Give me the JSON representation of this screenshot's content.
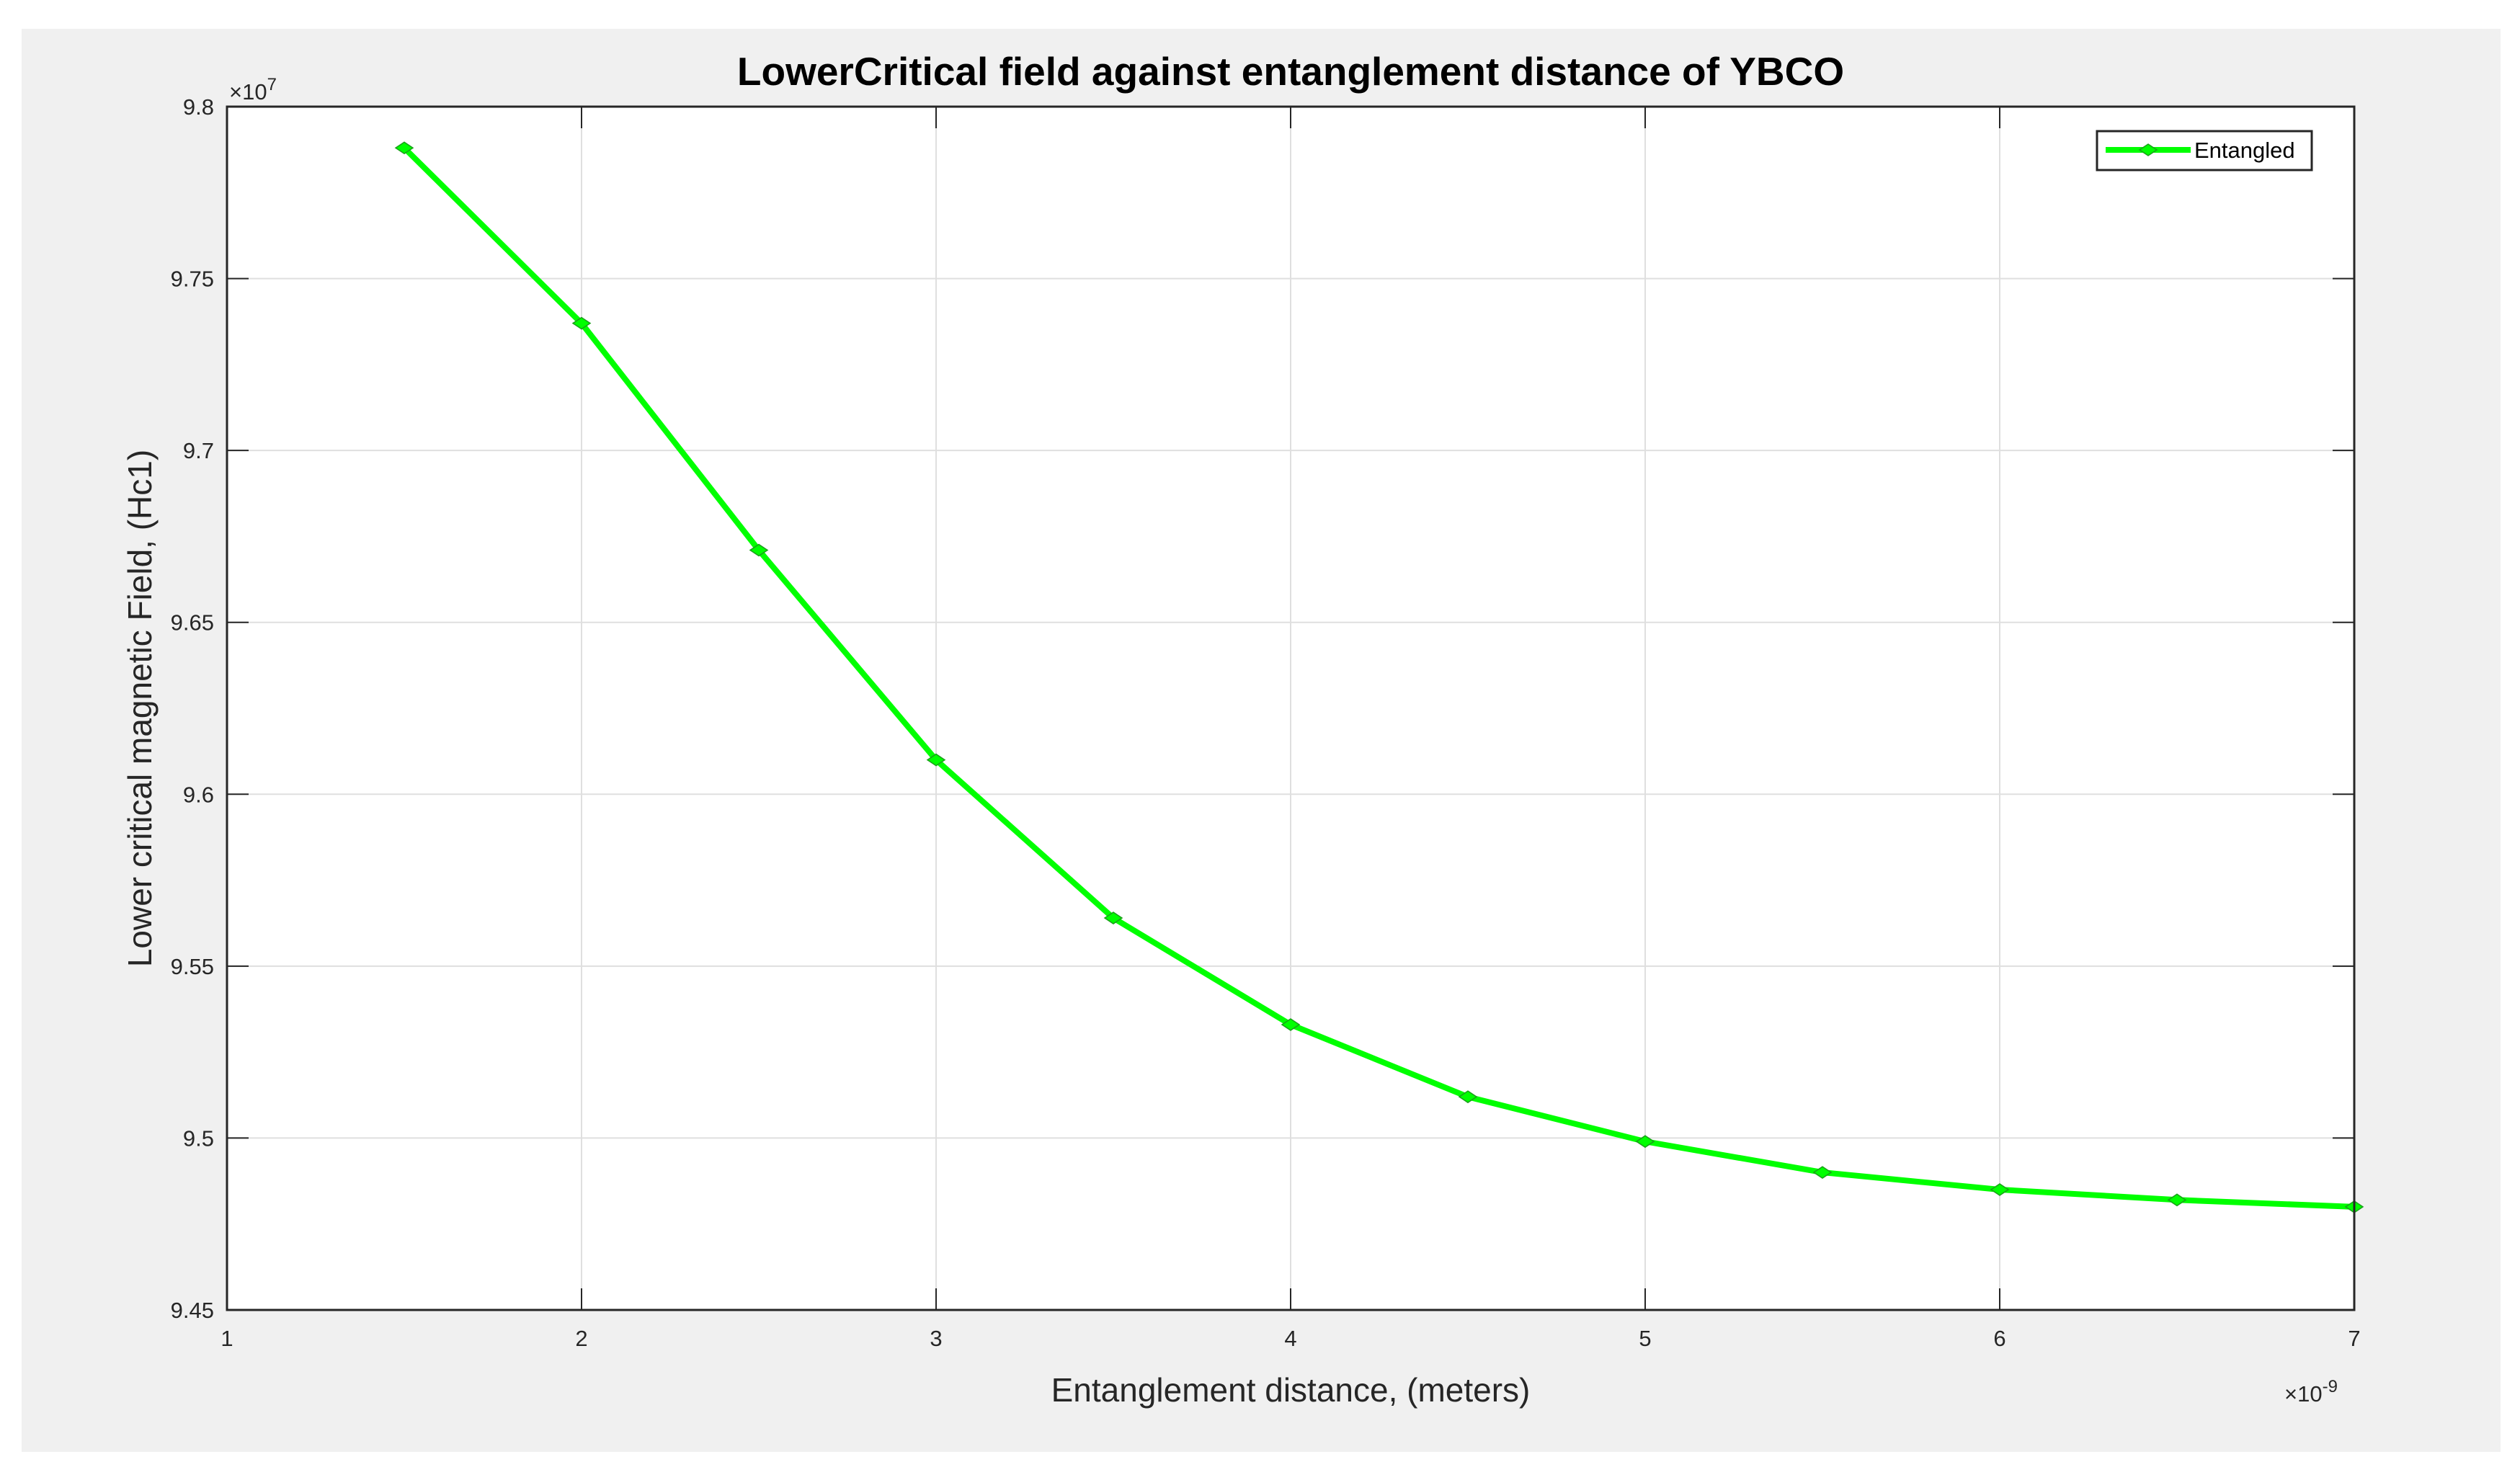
{
  "chart_data": {
    "type": "line",
    "title": "LowerCritical field against entanglement distance of YBCO",
    "xlabel": "Entanglement distance, (meters)",
    "ylabel": "Lower critical magnetic Field, (Hc1)",
    "x_exponent_label": "×10",
    "x_exponent_power": "-9",
    "y_exponent_label": "×10",
    "y_exponent_power": "7",
    "xlim": [
      1,
      7
    ],
    "ylim": [
      9.45,
      9.8
    ],
    "xticks": [
      "1",
      "2",
      "3",
      "4",
      "5",
      "6",
      "7"
    ],
    "yticks": [
      "9.45",
      "9.5",
      "9.55",
      "9.6",
      "9.65",
      "9.7",
      "9.75",
      "9.8"
    ],
    "grid": true,
    "legend_position": "top-right",
    "line_color": "#00ff00",
    "series": [
      {
        "name": "Entangled",
        "x": [
          1.5,
          2,
          2.5,
          3,
          3.5,
          4,
          4.5,
          5,
          5.5,
          6,
          6.5,
          7
        ],
        "y": [
          9.788,
          9.737,
          9.671,
          9.61,
          9.564,
          9.533,
          9.512,
          9.499,
          9.49,
          9.485,
          9.482,
          9.48
        ]
      }
    ]
  }
}
